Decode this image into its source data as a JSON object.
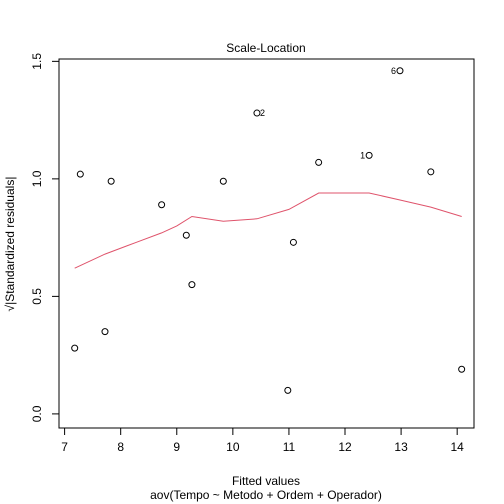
{
  "chart_data": {
    "type": "scatter",
    "title": "Scale-Location",
    "xlabel": "Fitted values",
    "sublabel": "aov(Tempo ~ Metodo + Ordem + Operador)",
    "ylabel": "√|Standardized residuals|",
    "xlim": [
      6.9,
      14.3
    ],
    "ylim": [
      -0.06,
      1.51
    ],
    "xticks": [
      7,
      8,
      9,
      10,
      11,
      12,
      13,
      14
    ],
    "yticks": [
      0.0,
      0.5,
      1.0,
      1.5
    ],
    "ytick_labels": [
      "0.0",
      "0.5",
      "1.0",
      "1.5"
    ],
    "points": [
      {
        "x": 7.18,
        "y": 0.28,
        "label": ""
      },
      {
        "x": 7.28,
        "y": 1.02,
        "label": ""
      },
      {
        "x": 7.72,
        "y": 0.35,
        "label": ""
      },
      {
        "x": 7.83,
        "y": 0.99,
        "label": ""
      },
      {
        "x": 8.73,
        "y": 0.89,
        "label": ""
      },
      {
        "x": 9.17,
        "y": 0.76,
        "label": ""
      },
      {
        "x": 9.27,
        "y": 0.55,
        "label": ""
      },
      {
        "x": 9.83,
        "y": 0.99,
        "label": ""
      },
      {
        "x": 10.43,
        "y": 1.28,
        "label": "2"
      },
      {
        "x": 10.98,
        "y": 0.1,
        "label": ""
      },
      {
        "x": 11.08,
        "y": 0.73,
        "label": ""
      },
      {
        "x": 11.53,
        "y": 1.07,
        "label": ""
      },
      {
        "x": 12.43,
        "y": 1.1,
        "label": "1"
      },
      {
        "x": 12.98,
        "y": 1.46,
        "label": "6"
      },
      {
        "x": 13.53,
        "y": 1.03,
        "label": ""
      },
      {
        "x": 14.08,
        "y": 0.19,
        "label": ""
      }
    ],
    "smooth_line": {
      "color": "#DF536B",
      "x": [
        7.18,
        7.72,
        8.28,
        8.73,
        9.0,
        9.27,
        9.83,
        10.43,
        11.0,
        11.53,
        12.43,
        12.98,
        13.53,
        14.08
      ],
      "y": [
        0.62,
        0.68,
        0.73,
        0.77,
        0.8,
        0.84,
        0.82,
        0.83,
        0.87,
        0.94,
        0.94,
        0.91,
        0.88,
        0.84
      ]
    },
    "grid": false,
    "legend": "none"
  }
}
